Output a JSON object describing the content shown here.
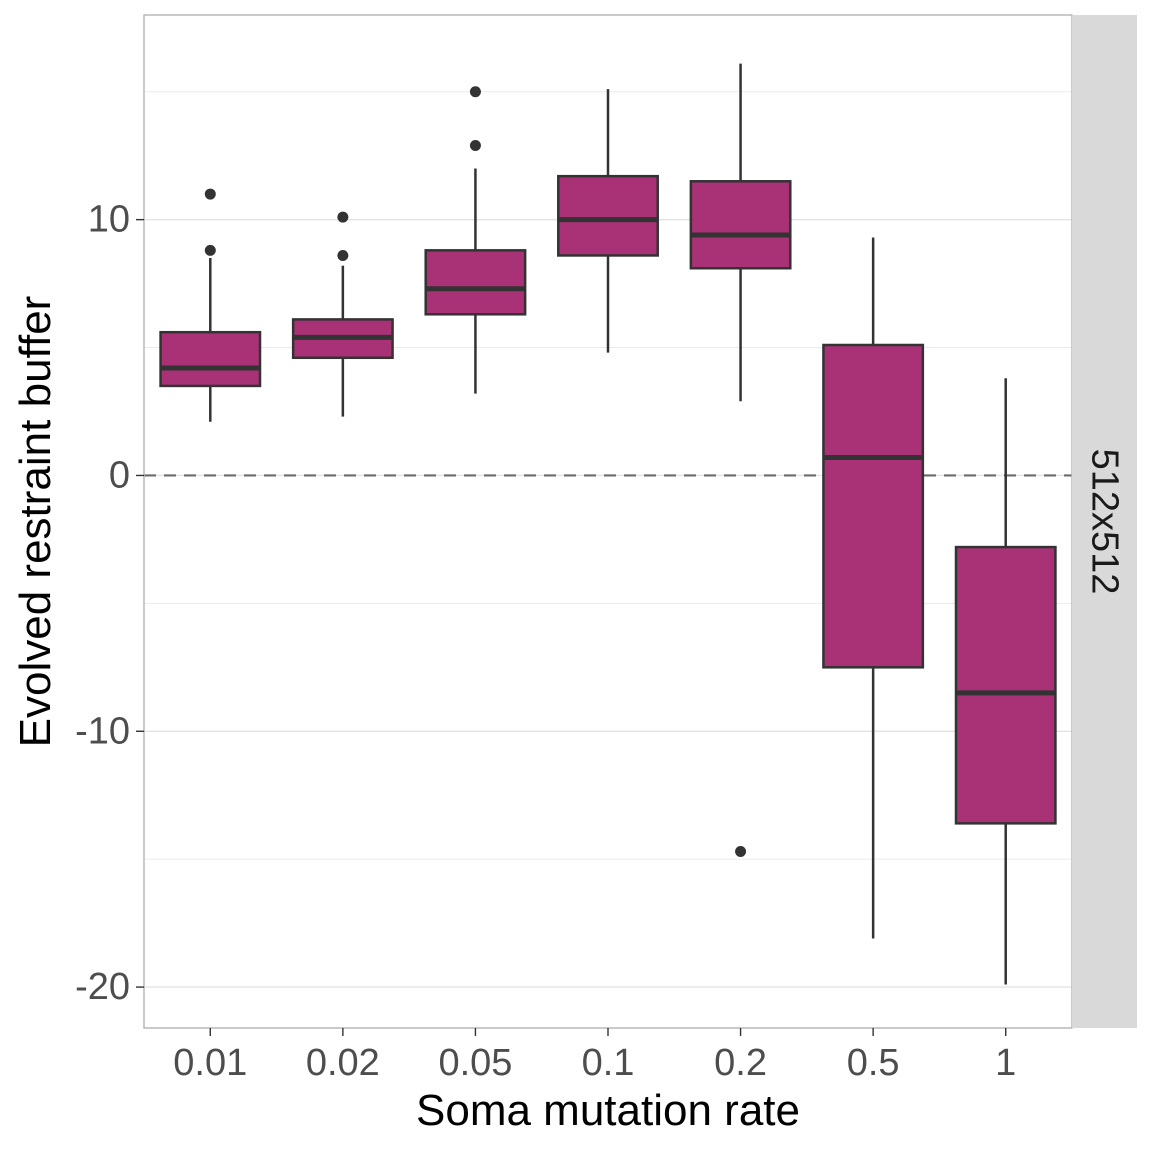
{
  "chart_data": {
    "type": "boxplot",
    "title": "",
    "xlabel": "Soma mutation rate",
    "ylabel": "Evolved restraint buffer",
    "facet_label": "512x512",
    "ylim": [
      -21.6,
      18
    ],
    "yticks": [
      -20,
      -10,
      0,
      10
    ],
    "ytick_labels": [
      "-20",
      "-10",
      "0",
      "10"
    ],
    "minor_gridlines": [
      -15,
      -5,
      5,
      15
    ],
    "reference_line": 0,
    "categories": [
      "0.01",
      "0.02",
      "0.05",
      "0.1",
      "0.2",
      "0.5",
      "1"
    ],
    "boxes": [
      {
        "category": "0.01",
        "whisker_low": 2.1,
        "q1": 3.5,
        "median": 4.2,
        "q3": 5.6,
        "whisker_high": 8.5,
        "outliers": [
          8.8,
          11.0
        ]
      },
      {
        "category": "0.02",
        "whisker_low": 2.3,
        "q1": 4.6,
        "median": 5.4,
        "q3": 6.1,
        "whisker_high": 8.2,
        "outliers": [
          8.6,
          10.1
        ]
      },
      {
        "category": "0.05",
        "whisker_low": 3.2,
        "q1": 6.3,
        "median": 7.3,
        "q3": 8.8,
        "whisker_high": 12.0,
        "outliers": [
          12.9,
          15.0
        ]
      },
      {
        "category": "0.1",
        "whisker_low": 4.8,
        "q1": 8.6,
        "median": 10.0,
        "q3": 11.7,
        "whisker_high": 15.1,
        "outliers": []
      },
      {
        "category": "0.2",
        "whisker_low": 2.9,
        "q1": 8.1,
        "median": 9.4,
        "q3": 11.5,
        "whisker_high": 16.1,
        "outliers": [
          -14.7
        ]
      },
      {
        "category": "0.5",
        "whisker_low": -18.1,
        "q1": -7.5,
        "median": 0.7,
        "q3": 5.1,
        "whisker_high": 9.3,
        "outliers": []
      },
      {
        "category": "1",
        "whisker_low": -19.9,
        "q1": -13.6,
        "median": -8.5,
        "q3": -2.8,
        "whisker_high": 3.8,
        "outliers": []
      }
    ],
    "colors": {
      "box_fill": "#a83275",
      "box_line": "#333333",
      "grid": "#ebebeb",
      "panel_border": "#b3b3b3",
      "strip_fill": "#d9d9d9",
      "reference_line": "#6b6b6b"
    }
  }
}
